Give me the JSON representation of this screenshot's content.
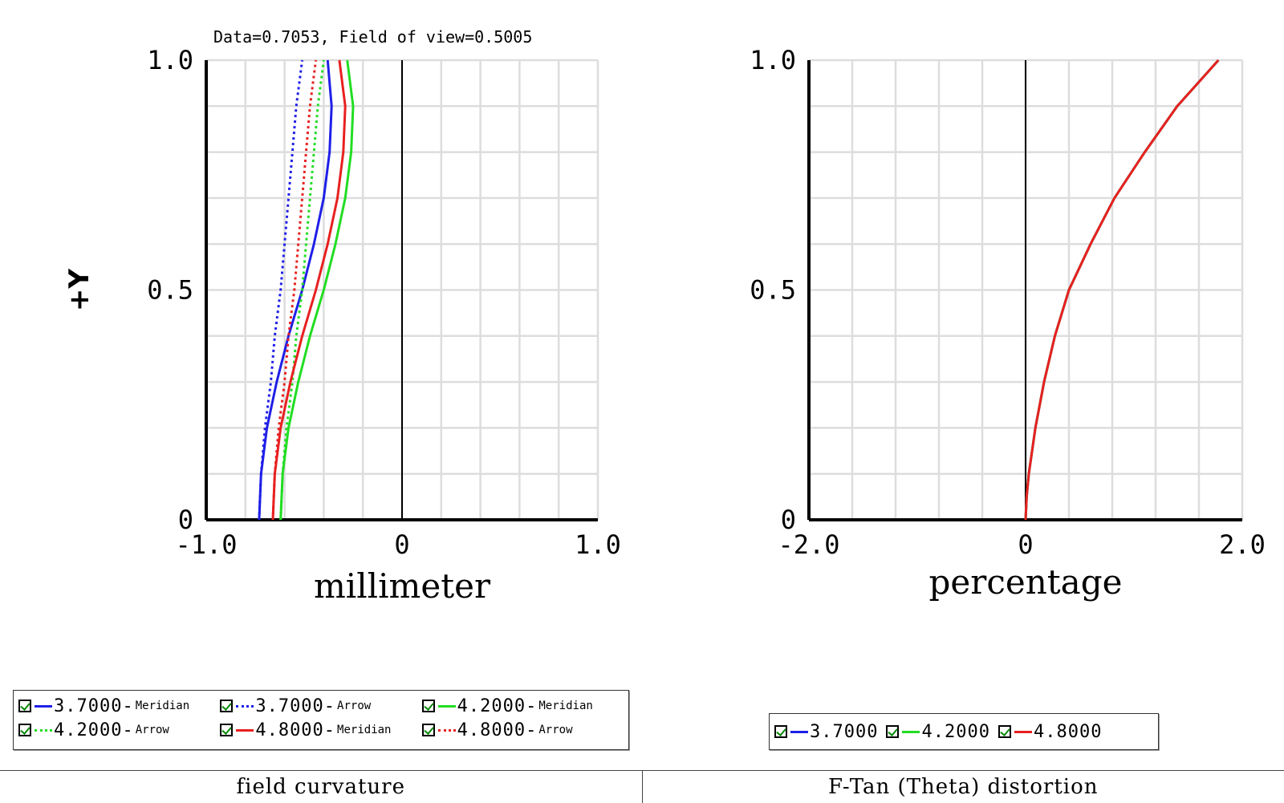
{
  "info_text": "Data=0.7053, Field of view=0.5005",
  "colors": {
    "blue": "#1f1fe8",
    "green": "#22dd22",
    "red": "#e82020",
    "grid": "#dddddd"
  },
  "chart_data": [
    {
      "type": "line",
      "title": "field curvature",
      "xlabel": "millimeter",
      "ylabel": "+Y",
      "xlim": [
        -1.0,
        1.0
      ],
      "ylim": [
        0,
        1.0
      ],
      "x_ticks": [
        "-1.0",
        "0",
        "1.0"
      ],
      "y_ticks": [
        "0",
        "0.5",
        "1.0"
      ],
      "grid": true,
      "legend_position": "bottom",
      "series": [
        {
          "name": "3.7000-Meridian",
          "color": "blue",
          "dash": "solid",
          "y": [
            0,
            0.1,
            0.2,
            0.3,
            0.4,
            0.5,
            0.6,
            0.7,
            0.8,
            0.9,
            1.0
          ],
          "x": [
            -0.73,
            -0.72,
            -0.69,
            -0.64,
            -0.58,
            -0.51,
            -0.45,
            -0.4,
            -0.37,
            -0.36,
            -0.38
          ]
        },
        {
          "name": "3.7000-Arrow",
          "color": "blue",
          "dash": "dotted",
          "y": [
            0,
            0.1,
            0.2,
            0.3,
            0.4,
            0.5,
            0.6,
            0.7,
            0.8,
            0.9,
            1.0
          ],
          "x": [
            -0.73,
            -0.72,
            -0.7,
            -0.67,
            -0.65,
            -0.62,
            -0.6,
            -0.58,
            -0.56,
            -0.54,
            -0.51
          ]
        },
        {
          "name": "4.2000-Meridian",
          "color": "green",
          "dash": "solid",
          "y": [
            0,
            0.1,
            0.2,
            0.3,
            0.4,
            0.5,
            0.6,
            0.7,
            0.8,
            0.9,
            1.0
          ],
          "x": [
            -0.62,
            -0.61,
            -0.58,
            -0.53,
            -0.47,
            -0.4,
            -0.34,
            -0.29,
            -0.26,
            -0.25,
            -0.28
          ]
        },
        {
          "name": "4.2000-Arrow",
          "color": "green",
          "dash": "dotted",
          "y": [
            0,
            0.1,
            0.2,
            0.3,
            0.4,
            0.5,
            0.6,
            0.7,
            0.8,
            0.9,
            1.0
          ],
          "x": [
            -0.62,
            -0.61,
            -0.59,
            -0.56,
            -0.54,
            -0.51,
            -0.49,
            -0.47,
            -0.45,
            -0.43,
            -0.4
          ]
        },
        {
          "name": "4.8000-Meridian",
          "color": "red",
          "dash": "solid",
          "y": [
            0,
            0.1,
            0.2,
            0.3,
            0.4,
            0.5,
            0.6,
            0.7,
            0.8,
            0.9,
            1.0
          ],
          "x": [
            -0.66,
            -0.65,
            -0.62,
            -0.57,
            -0.51,
            -0.44,
            -0.38,
            -0.33,
            -0.3,
            -0.29,
            -0.32
          ]
        },
        {
          "name": "4.8000-Arrow",
          "color": "red",
          "dash": "dotted",
          "y": [
            0,
            0.1,
            0.2,
            0.3,
            0.4,
            0.5,
            0.6,
            0.7,
            0.8,
            0.9,
            1.0
          ],
          "x": [
            -0.66,
            -0.65,
            -0.63,
            -0.6,
            -0.58,
            -0.55,
            -0.53,
            -0.51,
            -0.49,
            -0.47,
            -0.44
          ]
        }
      ]
    },
    {
      "type": "line",
      "title": "F-Tan (Theta) distortion",
      "xlabel": "percentage",
      "ylabel": "",
      "xlim": [
        -2.0,
        2.0
      ],
      "ylim": [
        0,
        1.0
      ],
      "x_ticks": [
        "-2.0",
        "0",
        "2.0"
      ],
      "y_ticks": [
        "0",
        "0.5",
        "1.0"
      ],
      "grid": true,
      "legend_position": "bottom",
      "series": [
        {
          "name": "3.7000",
          "color": "blue",
          "y": [
            0,
            0.05,
            0.1,
            0.2,
            0.3,
            0.4,
            0.5,
            0.6,
            0.7,
            0.8,
            0.9,
            1.0
          ],
          "x": [
            0,
            0.01,
            0.03,
            0.09,
            0.17,
            0.27,
            0.4,
            0.6,
            0.82,
            1.1,
            1.4,
            1.78
          ]
        },
        {
          "name": "4.2000",
          "color": "green",
          "y": [
            0,
            0.05,
            0.1,
            0.2,
            0.3,
            0.4,
            0.5,
            0.6,
            0.7,
            0.8,
            0.9,
            1.0
          ],
          "x": [
            0,
            0.01,
            0.03,
            0.09,
            0.17,
            0.27,
            0.4,
            0.6,
            0.82,
            1.1,
            1.4,
            1.78
          ]
        },
        {
          "name": "4.8000",
          "color": "red",
          "y": [
            0,
            0.05,
            0.1,
            0.2,
            0.3,
            0.4,
            0.5,
            0.6,
            0.7,
            0.8,
            0.9,
            1.0
          ],
          "x": [
            0,
            0.01,
            0.03,
            0.09,
            0.17,
            0.27,
            0.4,
            0.6,
            0.82,
            1.1,
            1.4,
            1.78
          ]
        }
      ]
    }
  ]
}
